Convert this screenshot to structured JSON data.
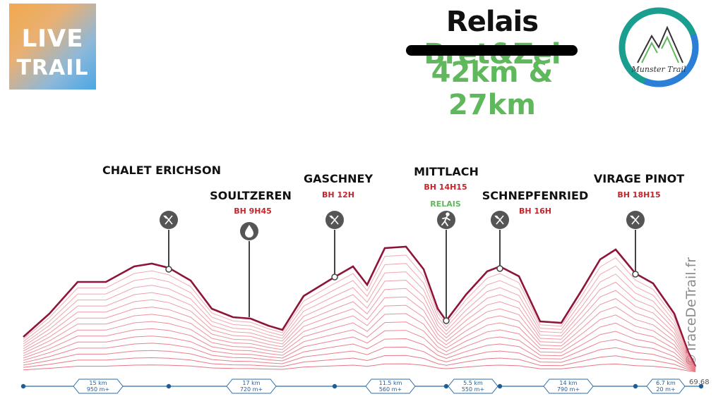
{
  "header": {
    "logo_line1": "LIVE",
    "logo_line2": "TRAIL",
    "title_part1": "Relais",
    "title_part2": "Bret&Zel",
    "subtitle": "42km & 27km",
    "brand_logo_text": "Munster Trail"
  },
  "watermark": "©TraceDeTrail.fr",
  "colors": {
    "profile_top": "#8e1538",
    "profile_lines": "#e6727e",
    "axis": "#2a6ea8",
    "bh_red": "#c0272d",
    "green": "#5fb85c"
  },
  "stops": [
    {
      "name": "CHALET ERICHSON",
      "bh": "",
      "extra": "",
      "icon": "cutlery-icon"
    },
    {
      "name": "SOULTZEREN",
      "bh": "BH 9H45",
      "extra": "",
      "icon": "water-drop-icon"
    },
    {
      "name": "GASCHNEY",
      "bh": "BH 12H",
      "extra": "",
      "icon": "cutlery-icon"
    },
    {
      "name": "MITTLACH",
      "bh": "BH 14H15",
      "extra": "RELAIS",
      "icon": "runner-icon"
    },
    {
      "name": "SCHNEPFENRIED",
      "bh": "BH 16H",
      "extra": "",
      "icon": "cutlery-icon"
    },
    {
      "name": "VIRAGE PINOT",
      "bh": "BH 18H15",
      "extra": "",
      "icon": "cutlery-icon"
    }
  ],
  "segments": [
    {
      "km": "15 km",
      "dplus": "950 m+"
    },
    {
      "km": "17 km",
      "dplus": "720 m+"
    },
    {
      "km": "11.5 km",
      "dplus": "560 m+"
    },
    {
      "km": "5.5 km",
      "dplus": "550 m+"
    },
    {
      "km": "14 km",
      "dplus": "790 m+"
    },
    {
      "km": "6.7 km",
      "dplus": "20 m+"
    }
  ],
  "total_distance": "69.68"
}
